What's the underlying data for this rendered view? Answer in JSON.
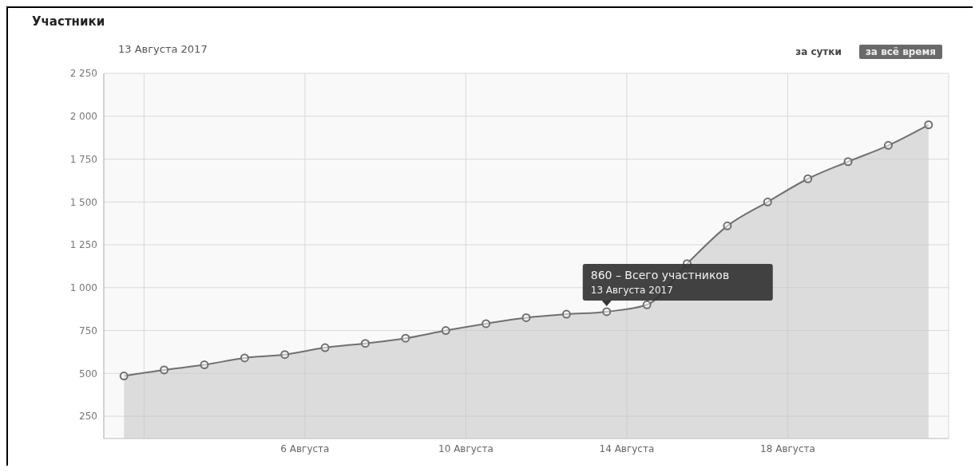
{
  "chart_data": {
    "type": "area",
    "title": "Участники",
    "subtitle": "13 Августа 2017",
    "x": [
      "2017-08-01T12:00",
      "2017-08-02T12:00",
      "2017-08-03T12:00",
      "2017-08-04T12:00",
      "2017-08-05T12:00",
      "2017-08-06T12:00",
      "2017-08-07T12:00",
      "2017-08-08T12:00",
      "2017-08-09T12:00",
      "2017-08-10T12:00",
      "2017-08-11T12:00",
      "2017-08-12T12:00",
      "2017-08-13T12:00",
      "2017-08-14T12:00",
      "2017-08-15T12:00",
      "2017-08-16T12:00",
      "2017-08-17T12:00",
      "2017-08-18T12:00",
      "2017-08-19T12:00",
      "2017-08-20T12:00",
      "2017-08-21T12:00"
    ],
    "series": [
      {
        "color": "#707070",
        "values": [
          485,
          520,
          550,
          590,
          610,
          650,
          675,
          705,
          750,
          790,
          825,
          845,
          860,
          900,
          1140,
          1360,
          1500,
          1635,
          1735,
          1830,
          1950
        ]
      }
    ],
    "xlim": [
      "2017-08-01T00:00",
      "2017-08-22T00:00"
    ],
    "xticks": [
      {
        "value": "2017-08-02T00:00",
        "label": null
      },
      {
        "value": "2017-08-06T00:00",
        "label": "6 Августа"
      },
      {
        "value": "2017-08-10T00:00",
        "label": "10 Августа"
      },
      {
        "value": "2017-08-14T00:00",
        "label": "14 Августа"
      },
      {
        "value": "2017-08-18T00:00",
        "label": "18 Августа"
      },
      {
        "value": "2017-08-22T00:00",
        "label": null
      }
    ],
    "ylim": [
      120,
      2250
    ],
    "yticks": [
      {
        "value": 250,
        "label": "250"
      },
      {
        "value": 500,
        "label": "500"
      },
      {
        "value": 750,
        "label": "750"
      },
      {
        "value": 1000,
        "label": "1 000"
      },
      {
        "value": 1250,
        "label": "1 250"
      },
      {
        "value": 1500,
        "label": "1 500"
      },
      {
        "value": 1750,
        "label": "1 750"
      },
      {
        "value": 2000,
        "label": "2 000"
      },
      {
        "value": 2250,
        "label": "2 250"
      }
    ],
    "grid": true,
    "legend": false,
    "marker": "circle",
    "line_style": "solid",
    "annotations": [
      {
        "text": "860 – Всего участников\n13 Августа 2017",
        "x": "2017-08-13T12:00",
        "y": 860
      },
      "за сутки",
      "за всё время"
    ]
  }
}
